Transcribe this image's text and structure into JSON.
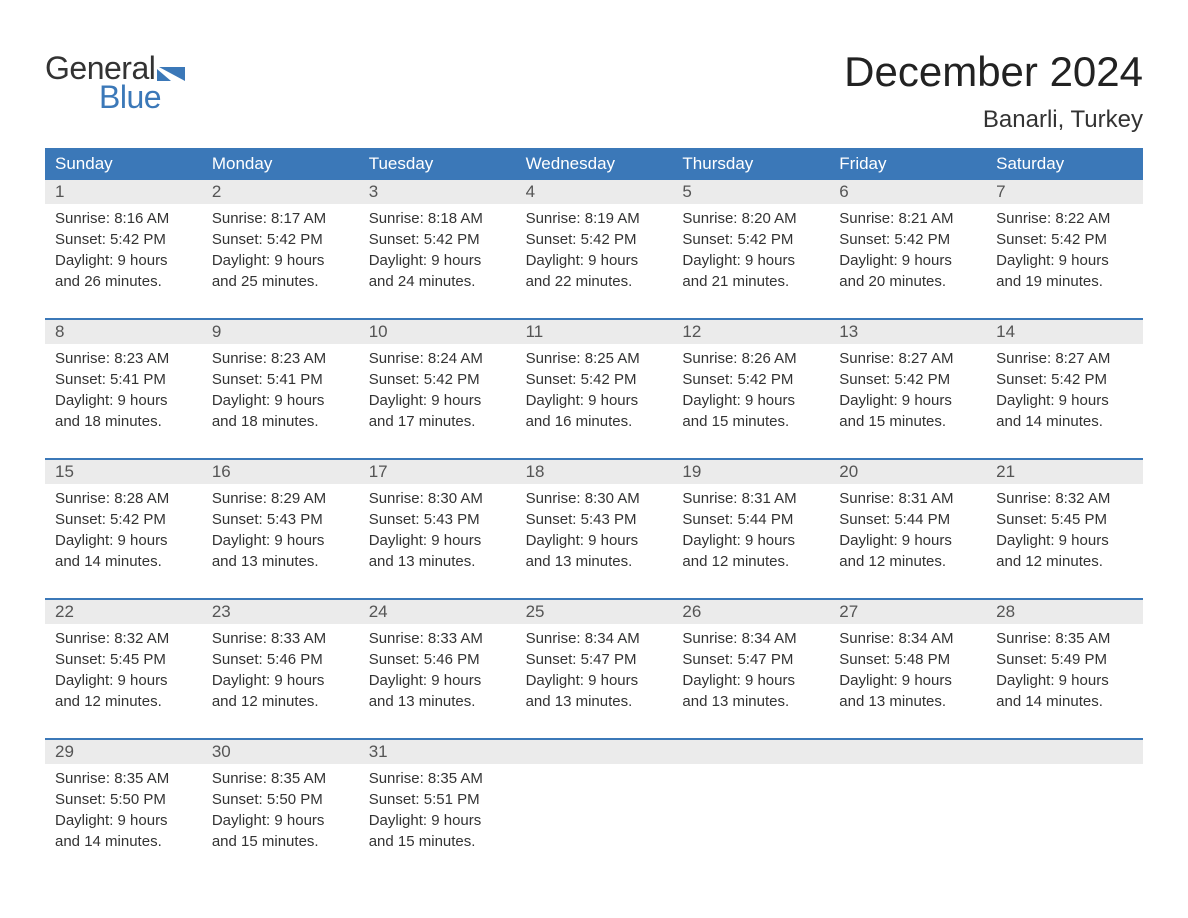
{
  "logo": {
    "word1": "General",
    "word2": "Blue",
    "text_color_1": "#333333",
    "text_color_2": "#3b78b8",
    "flag_color": "#3b78b8"
  },
  "title": "December 2024",
  "location": "Banarli, Turkey",
  "colors": {
    "header_bg": "#3b78b8",
    "header_text": "#ffffff",
    "date_row_bg": "#ebebeb",
    "week_border": "#3b78b8",
    "body_text": "#333333",
    "date_text": "#555555",
    "background": "#ffffff"
  },
  "day_names": [
    "Sunday",
    "Monday",
    "Tuesday",
    "Wednesday",
    "Thursday",
    "Friday",
    "Saturday"
  ],
  "weeks": [
    [
      {
        "date": "1",
        "sunrise": "8:16 AM",
        "sunset": "5:42 PM",
        "dl1": "9 hours",
        "dl2": "and 26 minutes."
      },
      {
        "date": "2",
        "sunrise": "8:17 AM",
        "sunset": "5:42 PM",
        "dl1": "9 hours",
        "dl2": "and 25 minutes."
      },
      {
        "date": "3",
        "sunrise": "8:18 AM",
        "sunset": "5:42 PM",
        "dl1": "9 hours",
        "dl2": "and 24 minutes."
      },
      {
        "date": "4",
        "sunrise": "8:19 AM",
        "sunset": "5:42 PM",
        "dl1": "9 hours",
        "dl2": "and 22 minutes."
      },
      {
        "date": "5",
        "sunrise": "8:20 AM",
        "sunset": "5:42 PM",
        "dl1": "9 hours",
        "dl2": "and 21 minutes."
      },
      {
        "date": "6",
        "sunrise": "8:21 AM",
        "sunset": "5:42 PM",
        "dl1": "9 hours",
        "dl2": "and 20 minutes."
      },
      {
        "date": "7",
        "sunrise": "8:22 AM",
        "sunset": "5:42 PM",
        "dl1": "9 hours",
        "dl2": "and 19 minutes."
      }
    ],
    [
      {
        "date": "8",
        "sunrise": "8:23 AM",
        "sunset": "5:41 PM",
        "dl1": "9 hours",
        "dl2": "and 18 minutes."
      },
      {
        "date": "9",
        "sunrise": "8:23 AM",
        "sunset": "5:41 PM",
        "dl1": "9 hours",
        "dl2": "and 18 minutes."
      },
      {
        "date": "10",
        "sunrise": "8:24 AM",
        "sunset": "5:42 PM",
        "dl1": "9 hours",
        "dl2": "and 17 minutes."
      },
      {
        "date": "11",
        "sunrise": "8:25 AM",
        "sunset": "5:42 PM",
        "dl1": "9 hours",
        "dl2": "and 16 minutes."
      },
      {
        "date": "12",
        "sunrise": "8:26 AM",
        "sunset": "5:42 PM",
        "dl1": "9 hours",
        "dl2": "and 15 minutes."
      },
      {
        "date": "13",
        "sunrise": "8:27 AM",
        "sunset": "5:42 PM",
        "dl1": "9 hours",
        "dl2": "and 15 minutes."
      },
      {
        "date": "14",
        "sunrise": "8:27 AM",
        "sunset": "5:42 PM",
        "dl1": "9 hours",
        "dl2": "and 14 minutes."
      }
    ],
    [
      {
        "date": "15",
        "sunrise": "8:28 AM",
        "sunset": "5:42 PM",
        "dl1": "9 hours",
        "dl2": "and 14 minutes."
      },
      {
        "date": "16",
        "sunrise": "8:29 AM",
        "sunset": "5:43 PM",
        "dl1": "9 hours",
        "dl2": "and 13 minutes."
      },
      {
        "date": "17",
        "sunrise": "8:30 AM",
        "sunset": "5:43 PM",
        "dl1": "9 hours",
        "dl2": "and 13 minutes."
      },
      {
        "date": "18",
        "sunrise": "8:30 AM",
        "sunset": "5:43 PM",
        "dl1": "9 hours",
        "dl2": "and 13 minutes."
      },
      {
        "date": "19",
        "sunrise": "8:31 AM",
        "sunset": "5:44 PM",
        "dl1": "9 hours",
        "dl2": "and 12 minutes."
      },
      {
        "date": "20",
        "sunrise": "8:31 AM",
        "sunset": "5:44 PM",
        "dl1": "9 hours",
        "dl2": "and 12 minutes."
      },
      {
        "date": "21",
        "sunrise": "8:32 AM",
        "sunset": "5:45 PM",
        "dl1": "9 hours",
        "dl2": "and 12 minutes."
      }
    ],
    [
      {
        "date": "22",
        "sunrise": "8:32 AM",
        "sunset": "5:45 PM",
        "dl1": "9 hours",
        "dl2": "and 12 minutes."
      },
      {
        "date": "23",
        "sunrise": "8:33 AM",
        "sunset": "5:46 PM",
        "dl1": "9 hours",
        "dl2": "and 12 minutes."
      },
      {
        "date": "24",
        "sunrise": "8:33 AM",
        "sunset": "5:46 PM",
        "dl1": "9 hours",
        "dl2": "and 13 minutes."
      },
      {
        "date": "25",
        "sunrise": "8:34 AM",
        "sunset": "5:47 PM",
        "dl1": "9 hours",
        "dl2": "and 13 minutes."
      },
      {
        "date": "26",
        "sunrise": "8:34 AM",
        "sunset": "5:47 PM",
        "dl1": "9 hours",
        "dl2": "and 13 minutes."
      },
      {
        "date": "27",
        "sunrise": "8:34 AM",
        "sunset": "5:48 PM",
        "dl1": "9 hours",
        "dl2": "and 13 minutes."
      },
      {
        "date": "28",
        "sunrise": "8:35 AM",
        "sunset": "5:49 PM",
        "dl1": "9 hours",
        "dl2": "and 14 minutes."
      }
    ],
    [
      {
        "date": "29",
        "sunrise": "8:35 AM",
        "sunset": "5:50 PM",
        "dl1": "9 hours",
        "dl2": "and 14 minutes."
      },
      {
        "date": "30",
        "sunrise": "8:35 AM",
        "sunset": "5:50 PM",
        "dl1": "9 hours",
        "dl2": "and 15 minutes."
      },
      {
        "date": "31",
        "sunrise": "8:35 AM",
        "sunset": "5:51 PM",
        "dl1": "9 hours",
        "dl2": "and 15 minutes."
      },
      null,
      null,
      null,
      null
    ]
  ],
  "labels": {
    "sunrise": "Sunrise:",
    "sunset": "Sunset:",
    "daylight": "Daylight:"
  }
}
